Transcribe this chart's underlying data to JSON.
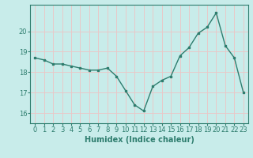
{
  "x": [
    0,
    1,
    2,
    3,
    4,
    5,
    6,
    7,
    8,
    9,
    10,
    11,
    12,
    13,
    14,
    15,
    16,
    17,
    18,
    19,
    20,
    21,
    22,
    23
  ],
  "y": [
    18.7,
    18.6,
    18.4,
    18.4,
    18.3,
    18.2,
    18.1,
    18.1,
    18.2,
    17.8,
    17.1,
    16.4,
    16.1,
    17.3,
    17.6,
    17.8,
    18.8,
    19.2,
    19.9,
    20.2,
    20.9,
    19.3,
    18.7,
    17.0
  ],
  "line_color": "#2e7d6e",
  "marker": "s",
  "marker_size": 2.0,
  "bg_color": "#c8ecea",
  "grid_color": "#e8c8c8",
  "axis_color": "#2e7d6e",
  "xlabel": "Humidex (Indice chaleur)",
  "xlabel_fontsize": 7,
  "tick_fontsize": 6,
  "ylim": [
    15.5,
    21.3
  ],
  "yticks": [
    16,
    17,
    18,
    19,
    20
  ],
  "xticks": [
    0,
    1,
    2,
    3,
    4,
    5,
    6,
    7,
    8,
    9,
    10,
    11,
    12,
    13,
    14,
    15,
    16,
    17,
    18,
    19,
    20,
    21,
    22,
    23
  ]
}
